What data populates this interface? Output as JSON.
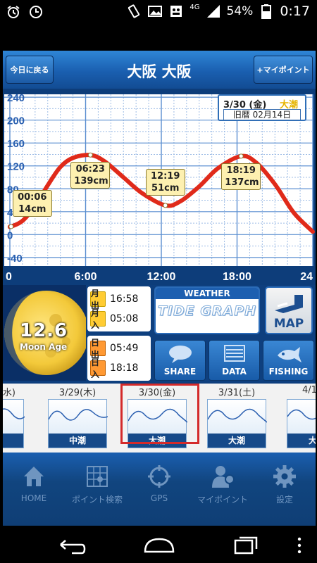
{
  "status_bar": {
    "network": "4G",
    "battery": "54%",
    "time": "0:17",
    "icons": [
      "alarm-icon",
      "alarm-clock-icon",
      "vibrate-icon",
      "gallery-icon",
      "screenshot-icon",
      "signal-icon",
      "battery-icon"
    ]
  },
  "header": {
    "title": "大阪 大阪",
    "today_button": "今日に戻る",
    "mypoint_button": "+マイポイント"
  },
  "chart_data": {
    "type": "line",
    "x_ticks": [
      "0",
      "6:00",
      "12:00",
      "18:00",
      "24"
    ],
    "y_ticks": [
      "240",
      "200",
      "160",
      "120",
      "80",
      "40",
      "0",
      "-40"
    ],
    "ylim": [
      -50,
      250
    ],
    "xlim": [
      0,
      24
    ],
    "series": [
      {
        "x": [
          0.0,
          0.1,
          1.0,
          2.0,
          3.0,
          4.0,
          5.0,
          6.38,
          7.5,
          9.0,
          10.5,
          12.32,
          13.5,
          15.0,
          16.5,
          18.32,
          19.5,
          21.0,
          22.5,
          24.0
        ],
        "y": [
          14,
          14,
          24,
          50,
          86,
          118,
          134,
          139,
          128,
          100,
          72,
          51,
          58,
          84,
          116,
          137,
          126,
          88,
          38,
          5
        ]
      }
    ],
    "tide_labels": [
      {
        "time": "00:06",
        "height": "14cm"
      },
      {
        "time": "06:23",
        "height": "139cm"
      },
      {
        "time": "12:19",
        "height": "51cm"
      },
      {
        "time": "18:19",
        "height": "137cm"
      }
    ],
    "grid": true,
    "line_color": "#e02a1a"
  },
  "date_box": {
    "date": "3/30 (金)",
    "tide_type": "大潮",
    "lunar": "旧暦 02月14日"
  },
  "moon": {
    "age_value": "12.6",
    "age_label": "Moon Age",
    "rise_tag": "月出",
    "rise": "16:58",
    "set_tag": "月入",
    "set": "05:08"
  },
  "sun": {
    "rise_tag": "日出",
    "rise": "05:49",
    "set_tag": "日入",
    "set": "18:18"
  },
  "weather": {
    "label": "WEATHER",
    "logo": "TIDE GRAPH"
  },
  "map_button": "MAP",
  "actions": {
    "share": "SHARE",
    "data": "DATA",
    "fishing": "FISHING"
  },
  "days": [
    {
      "date": "(水)",
      "tide": "潮"
    },
    {
      "date": "3/29(木)",
      "tide": "中潮"
    },
    {
      "date": "3/30(金)",
      "tide": "大潮"
    },
    {
      "date": "3/31(土)",
      "tide": "大潮"
    },
    {
      "date": "4/1",
      "tide": "大"
    }
  ],
  "bottom_nav": {
    "home": "HOME",
    "point_search": "ポイント検索",
    "gps": "GPS",
    "my_point": "マイポイント",
    "settings": "設定"
  }
}
